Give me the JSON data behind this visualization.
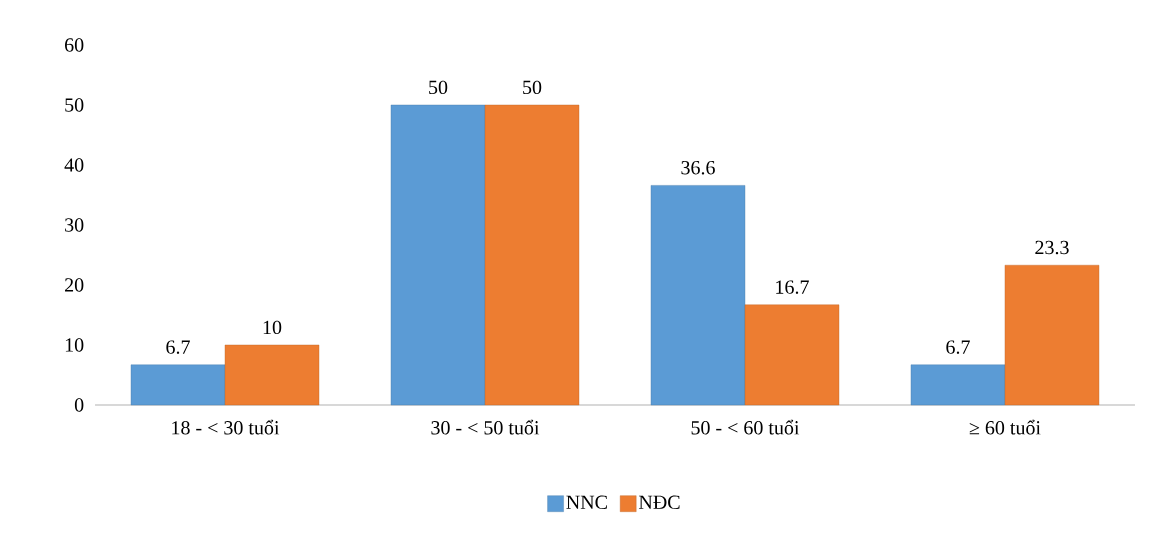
{
  "chart_data": {
    "type": "bar",
    "categories": [
      "18 - < 30 tuổi",
      "30 - < 50 tuổi",
      "50 - < 60 tuổi",
      "≥ 60 tuổi"
    ],
    "series": [
      {
        "name": "NNC",
        "color": "#5b9bd5",
        "values": [
          6.7,
          50,
          36.6,
          6.7
        ]
      },
      {
        "name": "NĐC",
        "color": "#ed7d31",
        "values": [
          10,
          50,
          16.7,
          23.3
        ]
      }
    ],
    "ylim": [
      0,
      60
    ],
    "yticks": [
      0,
      10,
      20,
      30,
      40,
      50,
      60
    ],
    "data_labels": true,
    "grid": false,
    "legend": "bottom"
  }
}
